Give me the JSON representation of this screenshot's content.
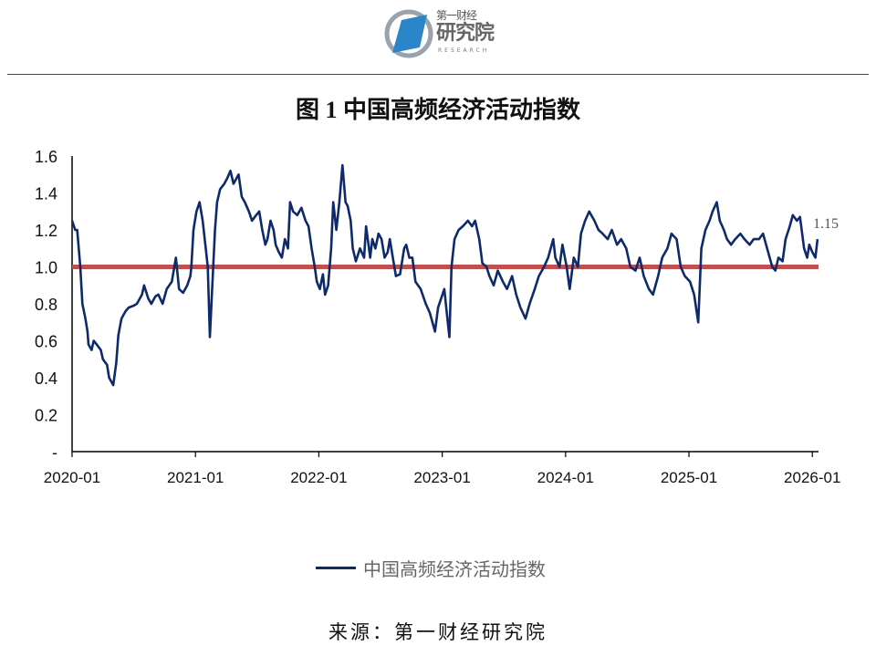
{
  "logo": {
    "top": "第一财经",
    "main": "研究院",
    "sub": "RESEARCH"
  },
  "title": "图 1  中国高频经济活动指数",
  "source": "来源：第一财经研究院",
  "colors": {
    "series": "#0e2a6b",
    "reference": "#c0504d"
  },
  "chart_data": {
    "type": "line",
    "title": "中国高频经济活动指数",
    "xlabel": "",
    "ylabel": "",
    "x_unit": "months since 2020-01",
    "xlim": [
      0,
      72.6
    ],
    "ylim": [
      0,
      1.6
    ],
    "yticks": [
      0,
      0.2,
      0.4,
      0.6,
      0.8,
      1.0,
      1.2,
      1.4,
      1.6
    ],
    "ytick_labels": [
      "-",
      "0.2",
      "0.4",
      "0.6",
      "0.8",
      "1.0",
      "1.2",
      "1.4",
      "1.6"
    ],
    "xticks": [
      0,
      12,
      24,
      36,
      48,
      60,
      72
    ],
    "xtick_labels": [
      "2020-01",
      "2021-01",
      "2022-01",
      "2023-01",
      "2024-01",
      "2025-01",
      "2026-01"
    ],
    "reference_line": {
      "value": 1.0
    },
    "end_label": "1.15",
    "legend": {
      "position": "bottom",
      "entries": [
        "中国高频经济活动指数"
      ]
    },
    "series": [
      {
        "name": "中国高频经济活动指数",
        "x": [
          0,
          0.3,
          0.5,
          0.8,
          1.0,
          1.3,
          1.5,
          1.6,
          1.9,
          2.1,
          2.4,
          2.8,
          3.0,
          3.4,
          3.6,
          4.0,
          4.3,
          4.5,
          4.8,
          5.2,
          5.5,
          6.0,
          6.3,
          6.8,
          7.0,
          7.4,
          7.7,
          8.1,
          8.4,
          8.8,
          9.2,
          9.7,
          10.1,
          10.4,
          10.8,
          11.2,
          11.5,
          11.6,
          11.8,
          12.1,
          12.4,
          12.7,
          13.0,
          13.2,
          13.4,
          13.6,
          13.9,
          14.1,
          14.4,
          14.8,
          15.1,
          15.4,
          15.7,
          16.2,
          16.5,
          16.8,
          17.2,
          17.5,
          17.9,
          18.2,
          18.5,
          18.8,
          19.0,
          19.3,
          19.6,
          19.8,
          20.1,
          20.4,
          20.7,
          21.0,
          21.2,
          21.5,
          21.9,
          22.3,
          22.7,
          23.0,
          23.3,
          23.6,
          23.8,
          24.1,
          24.4,
          24.6,
          24.9,
          25.2,
          25.4,
          25.7,
          26.0,
          26.3,
          26.6,
          26.8,
          27.1,
          27.3,
          27.6,
          28.0,
          28.4,
          28.6,
          29.0,
          29.2,
          29.5,
          29.8,
          30.1,
          30.4,
          30.7,
          30.9,
          31.2,
          31.5,
          31.9,
          32.3,
          32.5,
          32.8,
          33.1,
          33.4,
          33.9,
          34.4,
          34.8,
          35.3,
          35.6,
          36.2,
          36.5,
          36.7,
          36.9,
          37.2,
          37.6,
          38.0,
          38.5,
          38.9,
          39.2,
          39.6,
          39.9,
          40.3,
          40.6,
          41.0,
          41.4,
          41.9,
          42.3,
          42.8,
          43.2,
          43.6,
          44.1,
          44.5,
          45.0,
          45.4,
          45.9,
          46.3,
          46.8,
          47.0,
          47.4,
          47.7,
          48.1,
          48.4,
          48.8,
          49.2,
          49.5,
          49.9,
          50.3,
          50.8,
          51.2,
          51.6,
          52.1,
          52.5,
          53.0,
          53.4,
          53.9,
          54.3,
          54.8,
          55.2,
          55.6,
          56.1,
          56.5,
          57.0,
          57.4,
          57.9,
          58.3,
          58.8,
          59.2,
          59.6,
          60.1,
          60.5,
          60.9,
          61.2,
          61.6,
          62.0,
          62.3,
          62.7,
          63.0,
          63.4,
          63.7,
          64.1,
          64.5,
          65.0,
          65.4,
          65.9,
          66.3,
          66.8,
          67.2,
          67.6,
          68.1,
          68.4,
          68.7,
          69.1,
          69.4,
          69.8,
          70.1,
          70.5,
          70.8,
          71.2,
          71.5,
          71.7,
          72.0,
          72.3,
          72.5
        ],
        "y": [
          1.25,
          1.2,
          1.2,
          1.0,
          0.8,
          0.72,
          0.65,
          0.58,
          0.55,
          0.6,
          0.58,
          0.55,
          0.5,
          0.47,
          0.4,
          0.36,
          0.48,
          0.63,
          0.72,
          0.76,
          0.78,
          0.79,
          0.8,
          0.85,
          0.9,
          0.83,
          0.8,
          0.84,
          0.85,
          0.8,
          0.88,
          0.92,
          1.05,
          0.88,
          0.86,
          0.9,
          0.95,
          1.0,
          1.2,
          1.3,
          1.35,
          1.25,
          1.1,
          1.0,
          0.62,
          0.85,
          1.2,
          1.35,
          1.42,
          1.45,
          1.48,
          1.52,
          1.45,
          1.5,
          1.38,
          1.35,
          1.3,
          1.25,
          1.28,
          1.3,
          1.2,
          1.12,
          1.15,
          1.25,
          1.2,
          1.12,
          1.08,
          1.05,
          1.15,
          1.1,
          1.35,
          1.3,
          1.28,
          1.32,
          1.25,
          1.22,
          1.1,
          1.0,
          0.92,
          0.88,
          0.96,
          0.85,
          0.9,
          1.1,
          1.35,
          1.2,
          1.35,
          1.55,
          1.35,
          1.33,
          1.25,
          1.1,
          1.03,
          1.1,
          1.05,
          1.22,
          1.05,
          1.15,
          1.1,
          1.18,
          1.15,
          1.05,
          1.08,
          1.15,
          1.05,
          0.95,
          0.96,
          1.1,
          1.12,
          1.05,
          1.05,
          0.92,
          0.88,
          0.8,
          0.75,
          0.65,
          0.78,
          0.88,
          0.72,
          0.62,
          1.0,
          1.15,
          1.2,
          1.22,
          1.25,
          1.22,
          1.25,
          1.15,
          1.02,
          1.0,
          0.95,
          0.9,
          0.98,
          0.92,
          0.88,
          0.95,
          0.85,
          0.78,
          0.72,
          0.8,
          0.88,
          0.95,
          1.0,
          1.05,
          1.15,
          1.05,
          1.0,
          1.12,
          1.0,
          0.88,
          1.05,
          1.0,
          1.18,
          1.25,
          1.3,
          1.25,
          1.2,
          1.18,
          1.15,
          1.2,
          1.12,
          1.15,
          1.1,
          1.0,
          0.98,
          1.05,
          0.95,
          0.88,
          0.85,
          0.95,
          1.05,
          1.1,
          1.18,
          1.15,
          1.0,
          0.95,
          0.92,
          0.85,
          0.7,
          1.1,
          1.2,
          1.25,
          1.3,
          1.35,
          1.25,
          1.2,
          1.15,
          1.12,
          1.15,
          1.18,
          1.15,
          1.12,
          1.15,
          1.15,
          1.18,
          1.1,
          1.0,
          0.98,
          1.05,
          1.03,
          1.15,
          1.22,
          1.28,
          1.25,
          1.27,
          1.1,
          1.05,
          1.12,
          1.08,
          1.05,
          1.15
        ]
      }
    ]
  }
}
